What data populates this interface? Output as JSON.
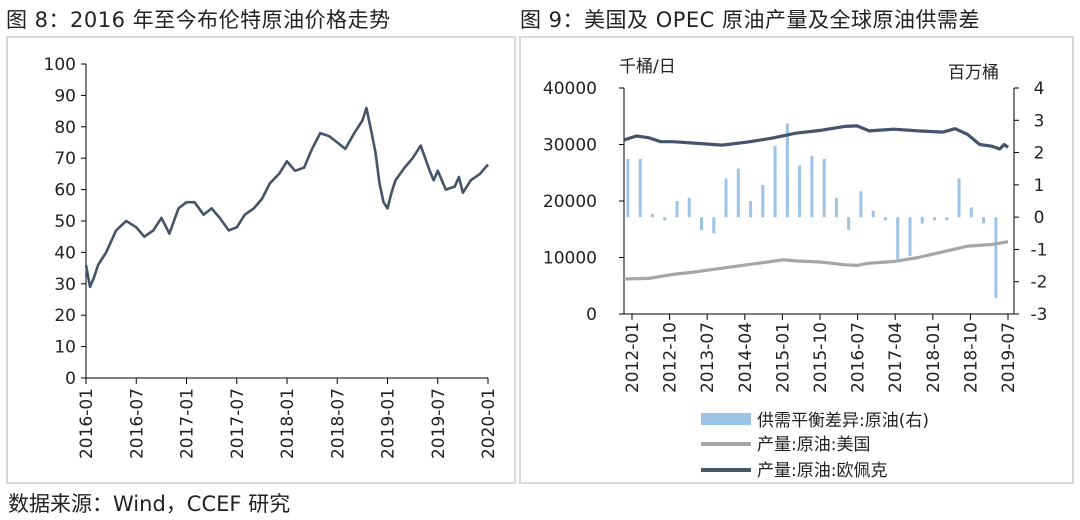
{
  "figure_left": {
    "title": "图 8：2016 年至今布伦特原油价格走势"
  },
  "figure_right": {
    "title": "图 9：美国及 OPEC 原油产量及全球原油供需差"
  },
  "source_note": "数据来源：Wind，CCEF 研究",
  "colors": {
    "line_dark": "#44546a",
    "line_gray": "#a6a6a6",
    "bar_blue": "#9dc3e6",
    "axis": "#000000",
    "frame": "#d9d9d9"
  },
  "chart_data": [
    {
      "type": "line",
      "title": "2016 年至今布伦特原油价格走势",
      "ylim": [
        0,
        100
      ],
      "yticks": [
        0,
        10,
        20,
        30,
        40,
        50,
        60,
        70,
        80,
        90,
        100
      ],
      "xticks": [
        "2016-01",
        "2016-07",
        "2017-01",
        "2017-07",
        "2018-01",
        "2018-07",
        "2019-01",
        "2019-07",
        "2020-01"
      ],
      "series": [
        {
          "name": "布伦特原油价格",
          "x": [
            2016.0,
            2016.04,
            2016.08,
            2016.12,
            2016.2,
            2016.3,
            2016.4,
            2016.5,
            2016.58,
            2016.67,
            2016.75,
            2016.83,
            2016.92,
            2017.0,
            2017.08,
            2017.17,
            2017.25,
            2017.33,
            2017.42,
            2017.5,
            2017.58,
            2017.67,
            2017.75,
            2017.83,
            2017.92,
            2018.0,
            2018.08,
            2018.17,
            2018.25,
            2018.33,
            2018.42,
            2018.5,
            2018.58,
            2018.67,
            2018.75,
            2018.79,
            2018.83,
            2018.88,
            2018.92,
            2018.96,
            2019.0,
            2019.04,
            2019.08,
            2019.17,
            2019.25,
            2019.33,
            2019.42,
            2019.46,
            2019.5,
            2019.58,
            2019.67,
            2019.71,
            2019.75,
            2019.83,
            2019.92,
            2020.0
          ],
          "values": [
            36,
            29,
            32,
            36,
            40,
            47,
            50,
            48,
            45,
            47,
            51,
            46,
            54,
            56,
            56,
            52,
            54,
            51,
            47,
            48,
            52,
            54,
            57,
            62,
            65,
            69,
            66,
            67,
            73,
            78,
            77,
            75,
            73,
            78,
            82,
            86,
            80,
            72,
            62,
            56,
            54,
            59,
            63,
            67,
            70,
            74,
            66,
            63,
            66,
            60,
            61,
            64,
            59,
            63,
            65,
            68
          ]
        }
      ]
    },
    {
      "type": "bar+line",
      "title": "美国及 OPEC 原油产量及全球原油供需差",
      "ylabel_left": "千桶/日",
      "ylabel_right": "百万桶",
      "ylim_left": [
        0,
        40000
      ],
      "ylim_right": [
        -3,
        4
      ],
      "yticks_left": [
        0,
        10000,
        20000,
        30000,
        40000
      ],
      "yticks_right": [
        -3,
        -2,
        -1,
        0,
        1,
        2,
        3,
        4
      ],
      "xticks": [
        "2012-01",
        "2012-10",
        "2013-07",
        "2014-04",
        "2015-01",
        "2015-10",
        "2016-07",
        "2017-04",
        "2018-01",
        "2018-10",
        "2019-07"
      ],
      "legend": [
        "供需平衡差异:原油(右)",
        "产量:原油:美国",
        "产量:原油:欧佩克"
      ],
      "bars": {
        "name": "供需平衡差异:原油(右)",
        "axis": "right",
        "x": [
          2012.08,
          2012.33,
          2012.58,
          2012.83,
          2013.08,
          2013.33,
          2013.58,
          2013.83,
          2014.08,
          2014.33,
          2014.58,
          2014.83,
          2015.08,
          2015.33,
          2015.58,
          2015.83,
          2016.08,
          2016.33,
          2016.58,
          2016.83,
          2017.08,
          2017.33,
          2017.58,
          2017.83,
          2018.08,
          2018.33,
          2018.58,
          2018.83,
          2019.08,
          2019.33,
          2019.58
        ],
        "values": [
          1.8,
          1.8,
          0.1,
          -0.1,
          0.5,
          0.6,
          -0.4,
          -0.5,
          1.2,
          1.5,
          0.5,
          1.0,
          2.2,
          2.9,
          1.6,
          1.9,
          1.8,
          0.6,
          -0.4,
          0.8,
          0.2,
          -0.1,
          -1.3,
          -1.2,
          -0.2,
          -0.1,
          -0.1,
          1.2,
          0.3,
          -0.2,
          -2.5
        ]
      },
      "series": [
        {
          "name": "产量:原油:美国",
          "axis": "left",
          "x": [
            2012.0,
            2012.5,
            2013.0,
            2013.5,
            2014.0,
            2014.5,
            2015.0,
            2015.25,
            2015.5,
            2016.0,
            2016.5,
            2016.75,
            2017.0,
            2017.5,
            2018.0,
            2018.5,
            2019.0,
            2019.5,
            2019.83
          ],
          "values": [
            6200,
            6300,
            7000,
            7500,
            8100,
            8700,
            9300,
            9600,
            9400,
            9200,
            8700,
            8600,
            9000,
            9300,
            10000,
            11000,
            12000,
            12300,
            12800
          ]
        },
        {
          "name": "产量:原油:欧佩克",
          "axis": "left",
          "x": [
            2012.0,
            2012.25,
            2012.5,
            2012.75,
            2013.0,
            2013.5,
            2014.0,
            2014.5,
            2015.0,
            2015.5,
            2016.0,
            2016.5,
            2016.75,
            2017.0,
            2017.5,
            2018.0,
            2018.5,
            2018.75,
            2019.0,
            2019.25,
            2019.5,
            2019.66,
            2019.75,
            2019.83
          ],
          "values": [
            30800,
            31500,
            31200,
            30500,
            30500,
            30200,
            29900,
            30400,
            31100,
            32000,
            32500,
            33200,
            33300,
            32400,
            32700,
            32400,
            32200,
            32800,
            31800,
            30000,
            29700,
            29200,
            30000,
            29500
          ]
        }
      ]
    }
  ]
}
